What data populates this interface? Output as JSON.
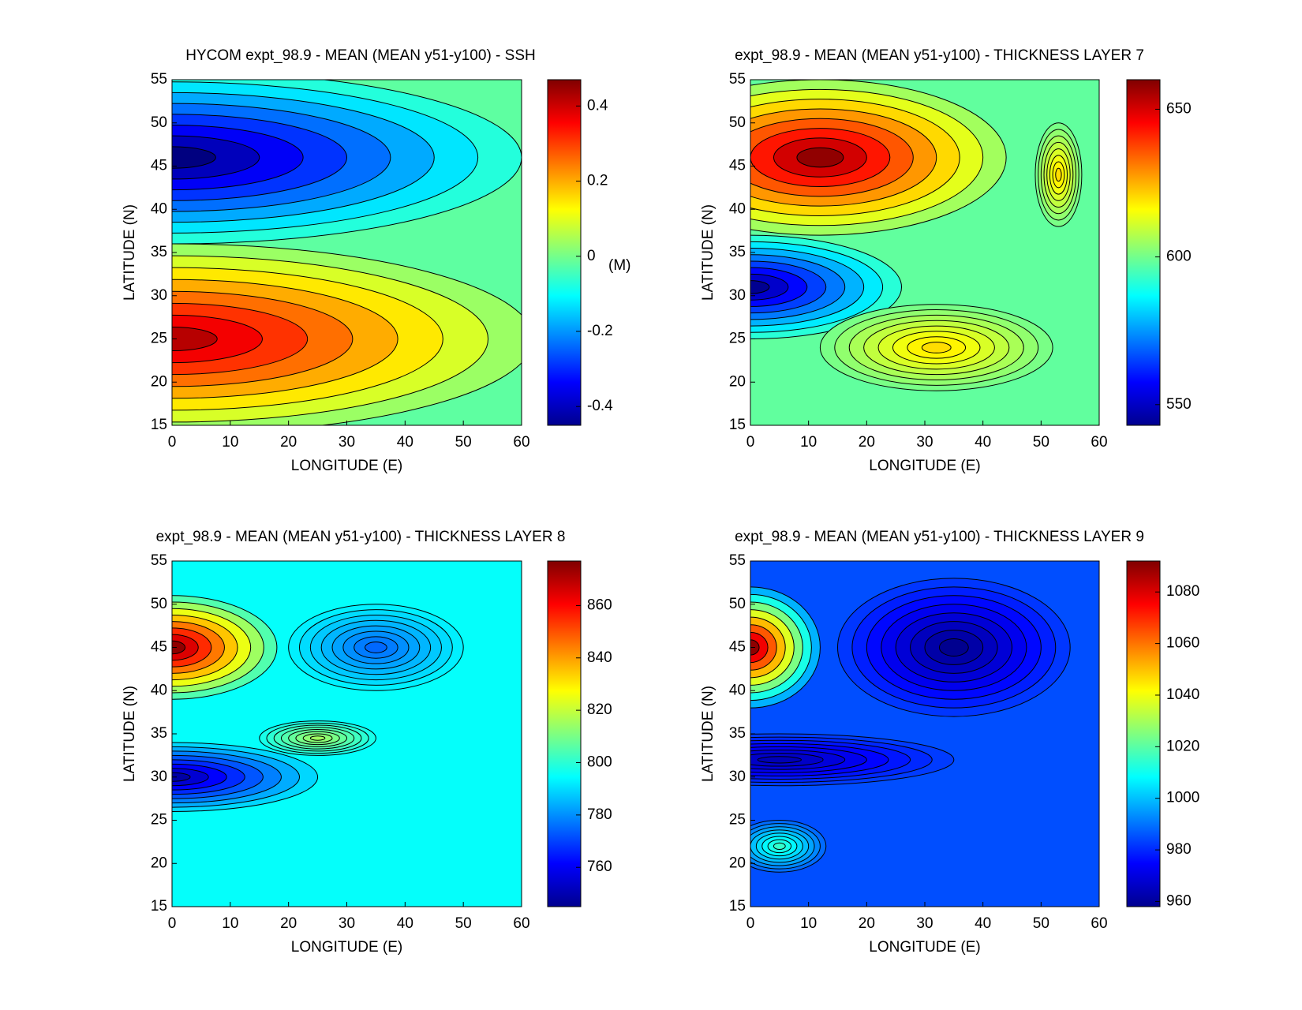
{
  "chart_data": [
    {
      "type": "contour",
      "title": "HYCOM expt_98.9 - MEAN (MEAN y51-y100) - SSH",
      "xlabel": "LONGITUDE (E)",
      "ylabel": "LATITUDE (N)",
      "xlim": [
        0,
        60
      ],
      "ylim": [
        15,
        55
      ],
      "xticks": [
        0,
        10,
        20,
        30,
        40,
        50,
        60
      ],
      "yticks": [
        15,
        20,
        25,
        30,
        35,
        40,
        45,
        50,
        55
      ],
      "clim": [
        -0.45,
        0.47
      ],
      "cticks": [
        -0.4,
        -0.2,
        0,
        0.2,
        0.4
      ],
      "clabel": "(M)",
      "background": -0.02,
      "features": [
        {
          "x": 0,
          "y": 46,
          "rx": 60,
          "ry": 10,
          "value": -0.45
        },
        {
          "x": 0,
          "y": 25,
          "rx": 62,
          "ry": 11,
          "value": 0.42
        }
      ]
    },
    {
      "type": "contour",
      "title": "expt_98.9 - MEAN (MEAN y51-y100) - THICKNESS LAYER 7",
      "xlabel": "LONGITUDE (E)",
      "ylabel": "LATITUDE (N)",
      "xlim": [
        0,
        60
      ],
      "ylim": [
        15,
        55
      ],
      "xticks": [
        0,
        10,
        20,
        30,
        40,
        50,
        60
      ],
      "yticks": [
        15,
        20,
        25,
        30,
        35,
        40,
        45,
        50,
        55
      ],
      "clim": [
        543,
        660
      ],
      "cticks": [
        550,
        600,
        650
      ],
      "background": 598,
      "features": [
        {
          "x": 12,
          "y": 46,
          "rx": 32,
          "ry": 9,
          "value": 658
        },
        {
          "x": 0,
          "y": 31,
          "rx": 26,
          "ry": 6,
          "value": 545
        },
        {
          "x": 32,
          "y": 24,
          "rx": 20,
          "ry": 5,
          "value": 620
        },
        {
          "x": 53,
          "y": 44,
          "rx": 4,
          "ry": 6,
          "value": 620
        }
      ]
    },
    {
      "type": "contour",
      "title": "expt_98.9 - MEAN (MEAN y51-y100) - THICKNESS LAYER 8",
      "xlabel": "LONGITUDE (E)",
      "ylabel": "LATITUDE (N)",
      "xlim": [
        0,
        60
      ],
      "ylim": [
        15,
        55
      ],
      "xticks": [
        0,
        10,
        20,
        30,
        40,
        50,
        60
      ],
      "yticks": [
        15,
        20,
        25,
        30,
        35,
        40,
        45,
        50,
        55
      ],
      "clim": [
        745,
        877
      ],
      "cticks": [
        760,
        780,
        800,
        820,
        840,
        860
      ],
      "background": 795,
      "features": [
        {
          "x": 0,
          "y": 45,
          "rx": 18,
          "ry": 6,
          "value": 875
        },
        {
          "x": 0,
          "y": 30,
          "rx": 25,
          "ry": 4,
          "value": 750
        },
        {
          "x": 35,
          "y": 45,
          "rx": 15,
          "ry": 5,
          "value": 775
        },
        {
          "x": 25,
          "y": 34.5,
          "rx": 10,
          "ry": 2,
          "value": 815
        }
      ]
    },
    {
      "type": "contour",
      "title": "expt_98.9 - MEAN (MEAN y51-y100) - THICKNESS LAYER 9",
      "xlabel": "LONGITUDE (E)",
      "ylabel": "LATITUDE (N)",
      "xlim": [
        0,
        60
      ],
      "ylim": [
        15,
        55
      ],
      "xticks": [
        0,
        10,
        20,
        30,
        40,
        50,
        60
      ],
      "yticks": [
        15,
        20,
        25,
        30,
        35,
        40,
        45,
        50,
        55
      ],
      "clim": [
        958,
        1092
      ],
      "cticks": [
        960,
        980,
        1000,
        1020,
        1040,
        1060,
        1080
      ],
      "background": 985,
      "features": [
        {
          "x": 0,
          "y": 45,
          "rx": 12,
          "ry": 7,
          "value": 1090
        },
        {
          "x": 35,
          "y": 45,
          "rx": 20,
          "ry": 8,
          "value": 960
        },
        {
          "x": 5,
          "y": 32,
          "rx": 30,
          "ry": 3,
          "value": 965
        },
        {
          "x": 5,
          "y": 22,
          "rx": 8,
          "ry": 3,
          "value": 1015
        }
      ]
    }
  ]
}
